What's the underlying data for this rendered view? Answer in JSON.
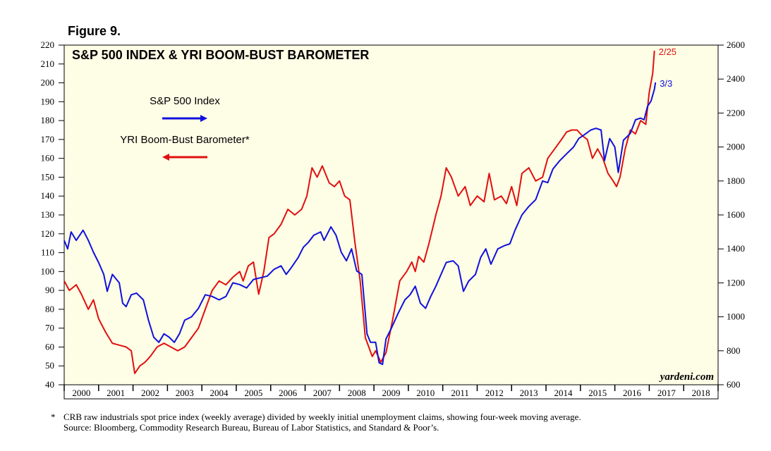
{
  "figure_label": "Figure 9.",
  "footnote": {
    "marker": "*",
    "line1": "CRB raw industrials spot price index (weekly average) divided by weekly initial unemployment claims, showing four-week moving average.",
    "line2": "Source: Bloomberg, Commodity Research Bureau, Bureau of Labor Statistics, and Standard & Poor’s."
  },
  "chart_data": {
    "type": "line",
    "title": "S&P 500 INDEX & YRI BOOM-BUST BAROMETER",
    "watermark": "yardeni.com",
    "background_color": "#fefde6",
    "x_range": [
      2000,
      2019
    ],
    "x_tick_labels": [
      "2000",
      "2001",
      "2002",
      "2003",
      "2004",
      "2005",
      "2006",
      "2007",
      "2008",
      "2009",
      "2010",
      "2011",
      "2012",
      "2013",
      "2014",
      "2015",
      "2016",
      "2017",
      "2018"
    ],
    "left_axis": {
      "range": [
        40,
        220
      ],
      "ticks": [
        40,
        50,
        60,
        70,
        80,
        90,
        100,
        110,
        120,
        130,
        140,
        150,
        160,
        170,
        180,
        190,
        200,
        210,
        220
      ]
    },
    "right_axis": {
      "range": [
        600,
        2600
      ],
      "ticks": [
        600,
        800,
        1000,
        1200,
        1400,
        1600,
        1800,
        2000,
        2200,
        2400,
        2600
      ]
    },
    "legend": [
      {
        "label": "S&P 500 Index",
        "color": "#1010dd",
        "arrow": "right"
      },
      {
        "label": "YRI Boom-Bust Barometer*",
        "color": "#e01010",
        "arrow": "left"
      }
    ],
    "series": [
      {
        "name": "YRI Boom-Bust Barometer*",
        "axis": "left",
        "color": "#e01010",
        "end_label": "2/25",
        "points": [
          [
            2000.0,
            95
          ],
          [
            2000.15,
            90
          ],
          [
            2000.35,
            93
          ],
          [
            2000.5,
            88
          ],
          [
            2000.7,
            80
          ],
          [
            2000.85,
            85
          ],
          [
            2001.0,
            75
          ],
          [
            2001.2,
            68
          ],
          [
            2001.4,
            62
          ],
          [
            2001.6,
            61
          ],
          [
            2001.8,
            60
          ],
          [
            2001.95,
            58
          ],
          [
            2002.05,
            46
          ],
          [
            2002.2,
            50
          ],
          [
            2002.35,
            52
          ],
          [
            2002.5,
            55
          ],
          [
            2002.7,
            60
          ],
          [
            2002.9,
            62
          ],
          [
            2003.1,
            60
          ],
          [
            2003.3,
            58
          ],
          [
            2003.5,
            60
          ],
          [
            2003.7,
            65
          ],
          [
            2003.9,
            70
          ],
          [
            2004.1,
            80
          ],
          [
            2004.3,
            90
          ],
          [
            2004.5,
            95
          ],
          [
            2004.7,
            93
          ],
          [
            2004.9,
            97
          ],
          [
            2005.1,
            100
          ],
          [
            2005.2,
            95
          ],
          [
            2005.35,
            103
          ],
          [
            2005.5,
            105
          ],
          [
            2005.65,
            88
          ],
          [
            2005.8,
            100
          ],
          [
            2005.95,
            118
          ],
          [
            2006.1,
            120
          ],
          [
            2006.3,
            125
          ],
          [
            2006.5,
            133
          ],
          [
            2006.7,
            130
          ],
          [
            2006.9,
            133
          ],
          [
            2007.05,
            140
          ],
          [
            2007.2,
            155
          ],
          [
            2007.35,
            150
          ],
          [
            2007.5,
            156
          ],
          [
            2007.7,
            147
          ],
          [
            2007.85,
            145
          ],
          [
            2008.0,
            148
          ],
          [
            2008.15,
            140
          ],
          [
            2008.3,
            138
          ],
          [
            2008.45,
            115
          ],
          [
            2008.6,
            95
          ],
          [
            2008.75,
            65
          ],
          [
            2008.85,
            60
          ],
          [
            2008.95,
            55
          ],
          [
            2009.05,
            58
          ],
          [
            2009.2,
            52
          ],
          [
            2009.35,
            57
          ],
          [
            2009.55,
            75
          ],
          [
            2009.75,
            95
          ],
          [
            2009.95,
            100
          ],
          [
            2010.1,
            105
          ],
          [
            2010.2,
            100
          ],
          [
            2010.3,
            108
          ],
          [
            2010.45,
            105
          ],
          [
            2010.6,
            115
          ],
          [
            2010.8,
            130
          ],
          [
            2010.95,
            140
          ],
          [
            2011.1,
            155
          ],
          [
            2011.25,
            150
          ],
          [
            2011.45,
            140
          ],
          [
            2011.65,
            145
          ],
          [
            2011.8,
            135
          ],
          [
            2012.0,
            140
          ],
          [
            2012.2,
            137
          ],
          [
            2012.35,
            152
          ],
          [
            2012.5,
            138
          ],
          [
            2012.7,
            140
          ],
          [
            2012.85,
            136
          ],
          [
            2013.0,
            145
          ],
          [
            2013.15,
            135
          ],
          [
            2013.3,
            152
          ],
          [
            2013.5,
            155
          ],
          [
            2013.7,
            148
          ],
          [
            2013.9,
            150
          ],
          [
            2014.05,
            160
          ],
          [
            2014.25,
            165
          ],
          [
            2014.45,
            170
          ],
          [
            2014.6,
            174
          ],
          [
            2014.75,
            175
          ],
          [
            2014.9,
            175
          ],
          [
            2015.05,
            172
          ],
          [
            2015.2,
            170
          ],
          [
            2015.35,
            160
          ],
          [
            2015.5,
            165
          ],
          [
            2015.65,
            160
          ],
          [
            2015.8,
            152
          ],
          [
            2015.95,
            148
          ],
          [
            2016.05,
            145
          ],
          [
            2016.15,
            150
          ],
          [
            2016.3,
            165
          ],
          [
            2016.45,
            175
          ],
          [
            2016.6,
            173
          ],
          [
            2016.75,
            180
          ],
          [
            2016.9,
            178
          ],
          [
            2017.0,
            195
          ],
          [
            2017.1,
            205
          ],
          [
            2017.15,
            217
          ]
        ]
      },
      {
        "name": "S&P 500 Index",
        "axis": "right",
        "color": "#1010dd",
        "end_label": "3/3",
        "points": [
          [
            2000.0,
            1450
          ],
          [
            2000.1,
            1400
          ],
          [
            2000.2,
            1500
          ],
          [
            2000.35,
            1450
          ],
          [
            2000.55,
            1510
          ],
          [
            2000.7,
            1450
          ],
          [
            2000.85,
            1380
          ],
          [
            2001.0,
            1320
          ],
          [
            2001.15,
            1250
          ],
          [
            2001.25,
            1150
          ],
          [
            2001.4,
            1250
          ],
          [
            2001.6,
            1200
          ],
          [
            2001.7,
            1080
          ],
          [
            2001.8,
            1060
          ],
          [
            2001.95,
            1130
          ],
          [
            2002.1,
            1140
          ],
          [
            2002.3,
            1100
          ],
          [
            2002.45,
            980
          ],
          [
            2002.6,
            880
          ],
          [
            2002.75,
            850
          ],
          [
            2002.9,
            900
          ],
          [
            2003.05,
            880
          ],
          [
            2003.2,
            850
          ],
          [
            2003.35,
            900
          ],
          [
            2003.5,
            980
          ],
          [
            2003.7,
            1000
          ],
          [
            2003.9,
            1050
          ],
          [
            2004.1,
            1130
          ],
          [
            2004.3,
            1120
          ],
          [
            2004.5,
            1100
          ],
          [
            2004.7,
            1120
          ],
          [
            2004.9,
            1200
          ],
          [
            2005.1,
            1190
          ],
          [
            2005.3,
            1170
          ],
          [
            2005.5,
            1220
          ],
          [
            2005.7,
            1230
          ],
          [
            2005.9,
            1240
          ],
          [
            2006.1,
            1280
          ],
          [
            2006.3,
            1300
          ],
          [
            2006.45,
            1250
          ],
          [
            2006.6,
            1290
          ],
          [
            2006.8,
            1350
          ],
          [
            2006.95,
            1410
          ],
          [
            2007.1,
            1440
          ],
          [
            2007.25,
            1480
          ],
          [
            2007.45,
            1500
          ],
          [
            2007.55,
            1450
          ],
          [
            2007.75,
            1530
          ],
          [
            2007.9,
            1480
          ],
          [
            2008.05,
            1380
          ],
          [
            2008.2,
            1330
          ],
          [
            2008.35,
            1400
          ],
          [
            2008.5,
            1270
          ],
          [
            2008.65,
            1250
          ],
          [
            2008.8,
            900
          ],
          [
            2008.9,
            850
          ],
          [
            2009.05,
            850
          ],
          [
            2009.15,
            730
          ],
          [
            2009.25,
            720
          ],
          [
            2009.35,
            870
          ],
          [
            2009.5,
            930
          ],
          [
            2009.7,
            1020
          ],
          [
            2009.9,
            1100
          ],
          [
            2010.05,
            1130
          ],
          [
            2010.2,
            1180
          ],
          [
            2010.35,
            1080
          ],
          [
            2010.5,
            1050
          ],
          [
            2010.65,
            1120
          ],
          [
            2010.8,
            1180
          ],
          [
            2010.95,
            1250
          ],
          [
            2011.1,
            1320
          ],
          [
            2011.3,
            1330
          ],
          [
            2011.45,
            1300
          ],
          [
            2011.6,
            1150
          ],
          [
            2011.75,
            1210
          ],
          [
            2011.95,
            1250
          ],
          [
            2012.1,
            1350
          ],
          [
            2012.25,
            1400
          ],
          [
            2012.4,
            1310
          ],
          [
            2012.6,
            1400
          ],
          [
            2012.8,
            1420
          ],
          [
            2012.95,
            1430
          ],
          [
            2013.1,
            1510
          ],
          [
            2013.3,
            1600
          ],
          [
            2013.5,
            1650
          ],
          [
            2013.7,
            1690
          ],
          [
            2013.9,
            1800
          ],
          [
            2014.05,
            1790
          ],
          [
            2014.2,
            1870
          ],
          [
            2014.4,
            1920
          ],
          [
            2014.6,
            1960
          ],
          [
            2014.8,
            2000
          ],
          [
            2014.95,
            2050
          ],
          [
            2015.1,
            2070
          ],
          [
            2015.3,
            2100
          ],
          [
            2015.45,
            2110
          ],
          [
            2015.6,
            2100
          ],
          [
            2015.7,
            1920
          ],
          [
            2015.85,
            2050
          ],
          [
            2016.0,
            2000
          ],
          [
            2016.1,
            1850
          ],
          [
            2016.25,
            2040
          ],
          [
            2016.45,
            2080
          ],
          [
            2016.6,
            2160
          ],
          [
            2016.75,
            2170
          ],
          [
            2016.85,
            2160
          ],
          [
            2016.95,
            2240
          ],
          [
            2017.05,
            2270
          ],
          [
            2017.15,
            2340
          ],
          [
            2017.18,
            2380
          ]
        ]
      }
    ]
  }
}
